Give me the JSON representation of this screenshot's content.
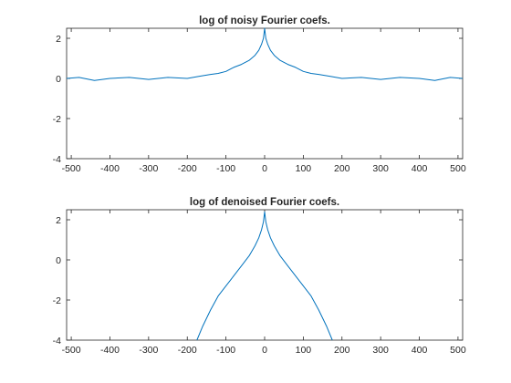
{
  "chart_data": [
    {
      "type": "line",
      "title": "log of noisy Fourier coefs.",
      "xlabel": "",
      "ylabel": "",
      "xlim": [
        -512,
        512
      ],
      "ylim": [
        -4,
        2.5
      ],
      "xticks": [
        -500,
        -400,
        -300,
        -200,
        -100,
        0,
        100,
        200,
        300,
        400,
        500
      ],
      "xtick_labels": [
        "-500",
        "-400",
        "-300",
        "-200",
        "-100",
        "0",
        "100",
        "200",
        "300",
        "400",
        "500"
      ],
      "yticks": [
        -4,
        -2,
        0,
        2
      ],
      "ytick_labels": [
        "-4",
        "-2",
        "0",
        "2"
      ],
      "grid": false,
      "color": "#0072BD",
      "series": [
        {
          "x": [
            -512,
            -480,
            -440,
            -400,
            -350,
            -300,
            -250,
            -200,
            -170,
            -140,
            -120,
            -100,
            -80,
            -60,
            -40,
            -25,
            -15,
            -8,
            -3,
            0,
            3,
            8,
            15,
            25,
            40,
            60,
            80,
            100,
            120,
            140,
            170,
            200,
            250,
            300,
            350,
            400,
            440,
            480,
            512
          ],
          "values": [
            0.0,
            0.05,
            -0.1,
            0.0,
            0.05,
            -0.05,
            0.05,
            0.0,
            0.1,
            0.2,
            0.25,
            0.35,
            0.55,
            0.7,
            0.9,
            1.15,
            1.4,
            1.7,
            2.0,
            2.5,
            2.0,
            1.7,
            1.4,
            1.15,
            0.9,
            0.7,
            0.55,
            0.35,
            0.25,
            0.2,
            0.1,
            0.0,
            0.05,
            -0.05,
            0.05,
            0.0,
            -0.1,
            0.05,
            0.0
          ]
        }
      ]
    },
    {
      "type": "line",
      "title": "log of denoised Fourier coefs.",
      "xlabel": "",
      "ylabel": "",
      "xlim": [
        -512,
        512
      ],
      "ylim": [
        -4,
        2.5
      ],
      "xticks": [
        -500,
        -400,
        -300,
        -200,
        -100,
        0,
        100,
        200,
        300,
        400,
        500
      ],
      "xtick_labels": [
        "-500",
        "-400",
        "-300",
        "-200",
        "-100",
        "0",
        "100",
        "200",
        "300",
        "400",
        "500"
      ],
      "yticks": [
        -4,
        -2,
        0,
        2
      ],
      "ytick_labels": [
        "-4",
        "-2",
        "0",
        "2"
      ],
      "grid": false,
      "color": "#0072BD",
      "series": [
        {
          "x": [
            -175,
            -160,
            -140,
            -120,
            -100,
            -80,
            -60,
            -40,
            -25,
            -15,
            -8,
            -3,
            0,
            3,
            8,
            15,
            25,
            40,
            60,
            80,
            100,
            120,
            140,
            160,
            175
          ],
          "values": [
            -4.0,
            -3.3,
            -2.5,
            -1.8,
            -1.3,
            -0.8,
            -0.3,
            0.2,
            0.7,
            1.1,
            1.5,
            1.9,
            2.4,
            1.9,
            1.5,
            1.1,
            0.7,
            0.2,
            -0.3,
            -0.8,
            -1.3,
            -1.8,
            -2.5,
            -3.3,
            -4.0
          ]
        }
      ]
    }
  ]
}
